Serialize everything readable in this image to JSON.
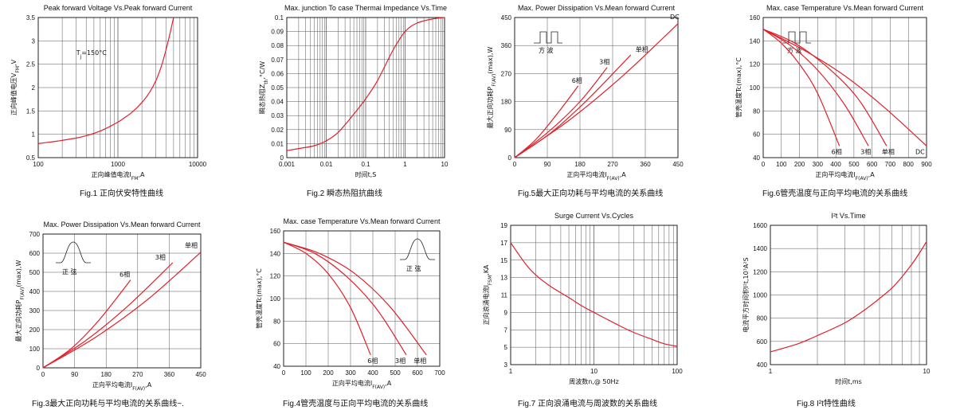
{
  "chart_data": [
    {
      "id": "fig1",
      "type": "line",
      "title": "Peak forward Voltage Vs.Peak forward Current",
      "caption": "Fig.1 正向伏安特性曲线",
      "xlabel": "正向峰值电流I",
      "xlabel_sub": "FM",
      "xlabel_unit": ",A",
      "ylabel": "正向峰值电压V",
      "ylabel_sub": "FM",
      "ylabel_unit": ",V",
      "xscale": "log",
      "xlim": [
        100,
        10000
      ],
      "ylim": [
        0.5,
        3.5
      ],
      "xticks": [
        100,
        1000,
        10000
      ],
      "xtick_labels": [
        "100",
        "1000",
        "10000"
      ],
      "yticks": [
        0.5,
        1,
        1.5,
        2,
        2.5,
        3,
        3.5
      ],
      "ytick_labels": [
        "0.5",
        "1",
        "1.5",
        "2",
        "2.5",
        "3",
        "3.5"
      ],
      "grid": true,
      "annotations": [
        {
          "text": "T",
          "sub": "j",
          "suffix": "=150°C",
          "at": [
            300,
            2.7
          ]
        }
      ],
      "series": [
        {
          "x": [
            100,
            150,
            200,
            300,
            400,
            500,
            600,
            700,
            800,
            1000,
            1200,
            1500,
            2000,
            2500,
            3000,
            3500,
            4000,
            4500,
            5000
          ],
          "y": [
            0.8,
            0.84,
            0.87,
            0.92,
            0.97,
            1.02,
            1.07,
            1.12,
            1.17,
            1.26,
            1.35,
            1.47,
            1.68,
            1.9,
            2.15,
            2.45,
            2.8,
            3.15,
            3.5
          ]
        }
      ]
    },
    {
      "id": "fig2",
      "type": "line",
      "title": "Max. junction To case Thermai Impedance Vs.Time",
      "caption": "Fig.2  瞬态热阻抗曲线",
      "xlabel": "时间t,S",
      "xlabel_sub": "",
      "xlabel_unit": "",
      "ylabel": "瞬态热阻Z",
      "ylabel_sub": "th",
      "ylabel_unit": ",°C/W",
      "xscale": "log",
      "xlim": [
        0.001,
        10
      ],
      "ylim": [
        0,
        0.1
      ],
      "xticks": [
        0.001,
        0.01,
        0.1,
        1,
        10
      ],
      "xtick_labels": [
        "0.001",
        "0.01",
        "0.1",
        "1",
        "10"
      ],
      "yticks": [
        0,
        0.01,
        0.02,
        0.03,
        0.04,
        0.05,
        0.06,
        0.07,
        0.08,
        0.09,
        0.1
      ],
      "ytick_labels": [
        "0",
        "0.01",
        "0.02",
        "0.03",
        "0.04",
        "0.05",
        "0.06",
        "0.07",
        "0.08",
        "0.09",
        "0.1"
      ],
      "grid": true,
      "series": [
        {
          "x": [
            0.001,
            0.002,
            0.005,
            0.01,
            0.02,
            0.05,
            0.1,
            0.2,
            0.5,
            1,
            2,
            5,
            10
          ],
          "y": [
            0.005,
            0.0065,
            0.0085,
            0.012,
            0.018,
            0.031,
            0.042,
            0.055,
            0.077,
            0.09,
            0.096,
            0.099,
            0.1
          ]
        }
      ]
    },
    {
      "id": "fig5",
      "type": "line",
      "title": "Max. Power Dissipation Vs.Mean forward Current",
      "caption": "Fig.5最大正向功耗与平均电流的关系曲线",
      "xlabel": "正向平均电流I",
      "xlabel_sub": "F(AV)",
      "xlabel_unit": ",A",
      "ylabel": "最大正向功耗P",
      "ylabel_sub": "F(AV)",
      "ylabel_unit": "(max),W",
      "xscale": "linear",
      "xlim": [
        0,
        450
      ],
      "ylim": [
        0,
        450
      ],
      "xticks": [
        0,
        90,
        180,
        270,
        360,
        450
      ],
      "xtick_labels": [
        "0",
        "90",
        "180",
        "270",
        "360",
        "450"
      ],
      "yticks": [
        0,
        90,
        180,
        270,
        360,
        450
      ],
      "ytick_labels": [
        "0",
        "90",
        "180",
        "270",
        "360",
        "450"
      ],
      "grid": true,
      "waveform": "square",
      "waveform_label": "方  波",
      "series": [
        {
          "name": "6相",
          "x": [
            0,
            60,
            120,
            175
          ],
          "y": [
            0,
            60,
            145,
            230
          ]
        },
        {
          "name": "3相",
          "x": [
            0,
            90,
            180,
            255
          ],
          "y": [
            0,
            80,
            180,
            290
          ]
        },
        {
          "name": "单相",
          "x": [
            0,
            100,
            200,
            320
          ],
          "y": [
            0,
            80,
            185,
            330
          ]
        },
        {
          "name": "DC",
          "x": [
            0,
            150,
            300,
            450
          ],
          "y": [
            0,
            120,
            265,
            430
          ]
        }
      ]
    },
    {
      "id": "fig6",
      "type": "line",
      "title": "Max. case Temperature Vs.Mean forward Current",
      "caption": "Fig.6管壳温度与正向平均电流的关系曲线",
      "xlabel": "正向平均电流I",
      "xlabel_sub": "F(AV)",
      "xlabel_unit": ",A",
      "ylabel": "管壳温度Tc(max),°C",
      "ylabel_sub": "",
      "ylabel_unit": "",
      "xscale": "linear",
      "xlim": [
        0,
        900
      ],
      "ylim": [
        40,
        160
      ],
      "xticks": [
        0,
        100,
        200,
        300,
        400,
        500,
        600,
        700,
        800,
        900
      ],
      "xtick_labels": [
        "0",
        "100",
        "200",
        "300",
        "400",
        "500",
        "600",
        "700",
        "800",
        "900"
      ],
      "yticks": [
        40,
        60,
        80,
        100,
        120,
        140,
        160
      ],
      "ytick_labels": [
        "40",
        "60",
        "80",
        "100",
        "120",
        "140",
        "160"
      ],
      "grid": true,
      "waveform": "square",
      "waveform_label": "方  波",
      "series": [
        {
          "name": "6相",
          "x": [
            0,
            100,
            200,
            300,
            420
          ],
          "y": [
            150,
            138,
            120,
            95,
            50
          ]
        },
        {
          "name": "3相",
          "x": [
            0,
            150,
            300,
            450,
            580
          ],
          "y": [
            150,
            136,
            115,
            85,
            50
          ]
        },
        {
          "name": "单相",
          "x": [
            0,
            175,
            350,
            525,
            680
          ],
          "y": [
            150,
            138,
            118,
            90,
            50
          ]
        },
        {
          "name": "DC",
          "x": [
            0,
            225,
            450,
            675,
            900
          ],
          "y": [
            150,
            132,
            110,
            82,
            50
          ]
        }
      ]
    },
    {
      "id": "fig3",
      "type": "line",
      "title": "Max. Power Dissipation Vs.Mean forward Current",
      "caption": "Fig.3最大正向功耗与平均电流的关系曲线~.",
      "xlabel": "正向平均电流I",
      "xlabel_sub": "F(AV)",
      "xlabel_unit": ",A",
      "ylabel": "最大正向功耗P",
      "ylabel_sub": "F(AV)",
      "ylabel_unit": "(max),W",
      "xscale": "linear",
      "xlim": [
        0,
        450
      ],
      "ylim": [
        0,
        700
      ],
      "xticks": [
        0,
        90,
        180,
        270,
        360,
        450
      ],
      "xtick_labels": [
        "0",
        "90",
        "180",
        "270",
        "360",
        "450"
      ],
      "yticks": [
        0,
        100,
        200,
        300,
        400,
        500,
        600,
        700
      ],
      "ytick_labels": [
        "0",
        "100",
        "200",
        "300",
        "400",
        "500",
        "600",
        "700"
      ],
      "grid": true,
      "waveform": "sine",
      "waveform_label": "正  弦",
      "series": [
        {
          "name": "6相",
          "x": [
            0,
            80,
            160,
            250
          ],
          "y": [
            0,
            100,
            250,
            460
          ]
        },
        {
          "name": "3相",
          "x": [
            0,
            120,
            240,
            370
          ],
          "y": [
            0,
            140,
            320,
            550
          ]
        },
        {
          "name": "单相",
          "x": [
            0,
            150,
            300,
            450
          ],
          "y": [
            0,
            160,
            360,
            605
          ]
        }
      ]
    },
    {
      "id": "fig4",
      "type": "line",
      "title": "Max. case Temperature Vs.Mean forward Current",
      "caption": "Fig.4管壳温度与正向平均电流的关系曲线",
      "xlabel": "正向平均电流I",
      "xlabel_sub": "F(AV)",
      "xlabel_unit": ",A",
      "ylabel": "管壳温度Tc(max),°C",
      "ylabel_sub": "",
      "ylabel_unit": "",
      "xscale": "linear",
      "xlim": [
        0,
        700
      ],
      "ylim": [
        40,
        160
      ],
      "xticks": [
        0,
        100,
        200,
        300,
        400,
        500,
        600,
        700
      ],
      "xtick_labels": [
        "0",
        "100",
        "200",
        "300",
        "400",
        "500",
        "600",
        "700"
      ],
      "yticks": [
        40,
        60,
        80,
        100,
        120,
        140,
        160
      ],
      "ytick_labels": [
        "40",
        "60",
        "80",
        "100",
        "120",
        "140",
        "160"
      ],
      "grid": true,
      "waveform": "sine",
      "waveform_label": "正  弦",
      "series": [
        {
          "name": "6相",
          "x": [
            0,
            100,
            200,
            300,
            390
          ],
          "y": [
            150,
            140,
            122,
            92,
            50
          ]
        },
        {
          "name": "3相",
          "x": [
            0,
            140,
            280,
            420,
            550
          ],
          "y": [
            150,
            140,
            120,
            90,
            50
          ]
        },
        {
          "name": "单相",
          "x": [
            0,
            160,
            320,
            480,
            640
          ],
          "y": [
            150,
            140,
            122,
            92,
            50
          ]
        }
      ]
    },
    {
      "id": "fig7",
      "type": "line",
      "title": "Surge Current Vs.Cycles",
      "caption": "Fig.7 正向浪涌电流与周波数的关系曲线",
      "xlabel": "周波数n,@ 50Hz",
      "xlabel_sub": "",
      "xlabel_unit": "",
      "ylabel": "正向浪涌电流I",
      "ylabel_sub": "FSM",
      "ylabel_unit": ",KA",
      "xscale": "log",
      "xlim": [
        1,
        100
      ],
      "ylim": [
        3,
        19
      ],
      "xticks": [
        1,
        10,
        100
      ],
      "xtick_labels": [
        "1",
        "10",
        "100"
      ],
      "yticks": [
        3,
        5,
        7,
        9,
        11,
        13,
        15,
        17,
        19
      ],
      "ytick_labels": [
        "3",
        "5",
        "7",
        "9",
        "11",
        "13",
        "15",
        "17",
        "19"
      ],
      "grid": true,
      "series": [
        {
          "x": [
            1,
            1.5,
            2,
            3,
            5,
            7,
            10,
            20,
            30,
            50,
            70,
            100
          ],
          "y": [
            17,
            14.6,
            13.3,
            12,
            10.7,
            9.8,
            9,
            7.5,
            6.7,
            5.9,
            5.4,
            5.1
          ]
        }
      ]
    },
    {
      "id": "fig8",
      "type": "line",
      "title": "I²t  Vs.Time",
      "caption": "Fig.8 I²t特性曲线",
      "xlabel": "时间t,ms",
      "xlabel_sub": "",
      "xlabel_unit": "",
      "ylabel": "电流平方时间积I²t,10³A²S",
      "ylabel_sub": "",
      "ylabel_unit": "",
      "xscale": "log",
      "xlim": [
        1,
        10
      ],
      "ylim": [
        400,
        1600
      ],
      "xticks": [
        1,
        10
      ],
      "xtick_labels": [
        "1",
        "10"
      ],
      "yticks": [
        400,
        600,
        800,
        1000,
        1200,
        1400,
        1600
      ],
      "ytick_labels": [
        "400",
        "600",
        "800",
        "1000",
        "1200",
        "1400",
        "1600"
      ],
      "grid": true,
      "series": [
        {
          "x": [
            1,
            1.5,
            2,
            3,
            4,
            5,
            6,
            7,
            8,
            9,
            10
          ],
          "y": [
            510,
            580,
            650,
            760,
            870,
            970,
            1060,
            1160,
            1260,
            1360,
            1460
          ]
        }
      ]
    }
  ]
}
